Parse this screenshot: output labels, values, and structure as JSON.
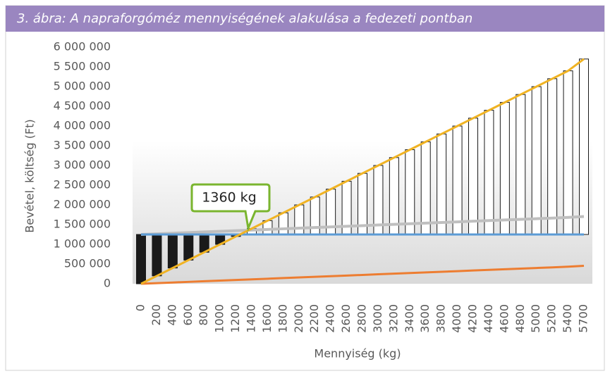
{
  "chart_data": {
    "type": "line",
    "title": "3. ábra: A napraforgóméz mennyiségének alakulása a fedezeti pontban",
    "x_label": "Mennyiség (kg)",
    "y_label": "Bevétel, költség (Ft)",
    "annotation": "1360 kg",
    "categories": [
      "0",
      "200",
      "400",
      "600",
      "800",
      "1000",
      "1200",
      "1400",
      "1600",
      "1800",
      "2000",
      "2200",
      "2400",
      "2600",
      "2800",
      "3000",
      "3200",
      "3400",
      "3600",
      "3800",
      "4000",
      "4200",
      "4400",
      "4600",
      "4800",
      "5000",
      "5200",
      "5400",
      "5700"
    ],
    "series": [
      {
        "color": "#f0b323",
        "values": [
          0,
          200000,
          400000,
          600000,
          800000,
          1000000,
          1200000,
          1400000,
          1600000,
          1800000,
          2000000,
          2200000,
          2400000,
          2600000,
          2800000,
          3000000,
          3200000,
          3400000,
          3600000,
          3800000,
          4000000,
          4200000,
          4400000,
          4600000,
          4800000,
          5000000,
          5200000,
          5400000,
          5700000
        ]
      },
      {
        "color": "#5b9bd5",
        "values": [
          1250000,
          1250000,
          1250000,
          1250000,
          1250000,
          1250000,
          1250000,
          1250000,
          1250000,
          1250000,
          1250000,
          1250000,
          1250000,
          1250000,
          1250000,
          1250000,
          1250000,
          1250000,
          1250000,
          1250000,
          1250000,
          1250000,
          1250000,
          1250000,
          1250000,
          1250000,
          1250000,
          1250000,
          1250000
        ]
      },
      {
        "color": "#bfbfbf",
        "values": [
          1250000,
          1266000,
          1282000,
          1298000,
          1314000,
          1330000,
          1346000,
          1362000,
          1378000,
          1394000,
          1410000,
          1426000,
          1442000,
          1458000,
          1474000,
          1490000,
          1506000,
          1522000,
          1538000,
          1554000,
          1570000,
          1586000,
          1602000,
          1618000,
          1634000,
          1650000,
          1666000,
          1682000,
          1706000
        ]
      },
      {
        "color": "#ed7d31",
        "values": [
          0,
          16000,
          32000,
          48000,
          64000,
          80000,
          96000,
          112000,
          128000,
          144000,
          160000,
          176000,
          192000,
          208000,
          224000,
          240000,
          256000,
          272000,
          288000,
          304000,
          320000,
          336000,
          352000,
          368000,
          384000,
          400000,
          416000,
          432000,
          456000
        ]
      }
    ],
    "updown_bars": {
      "up_color": "#ffffff",
      "down_color": "#1a1a1a"
    },
    "ylim": [
      0,
      6000000
    ],
    "yticks": [
      0,
      {
        "value": 500000,
        "label": "500 000"
      },
      {
        "value": 1000000,
        "label": "1 000 000"
      },
      {
        "value": 1500000,
        "label": "1 500 000"
      },
      {
        "value": 2000000,
        "label": "2 000 000"
      },
      {
        "value": 2500000,
        "label": "2 500 000"
      },
      {
        "value": 3000000,
        "label": "3 000 000"
      },
      {
        "value": 3500000,
        "label": "3 500 000"
      },
      {
        "value": 4000000,
        "label": "4 000 000"
      },
      {
        "value": 4500000,
        "label": "4 500 000"
      },
      {
        "value": 5000000,
        "label": "5 000 000"
      },
      {
        "value": 5500000,
        "label": "5 500 000"
      },
      {
        "value": 6000000,
        "label": "6 000 000"
      }
    ]
  }
}
